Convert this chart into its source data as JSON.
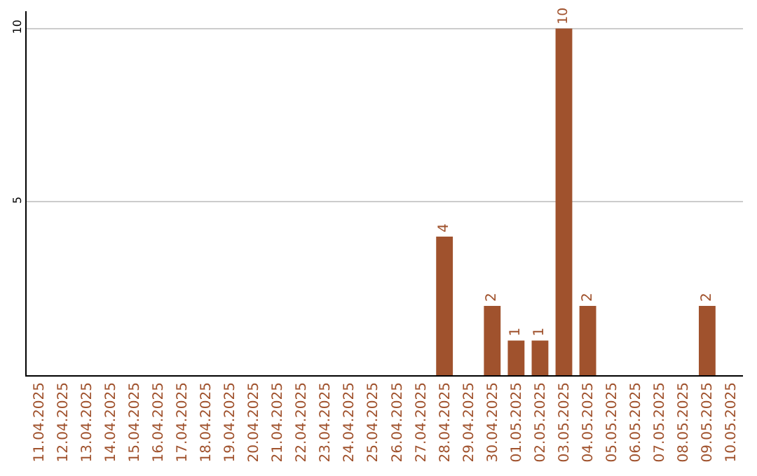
{
  "chart_data": {
    "type": "bar",
    "categories": [
      "11.04.2025",
      "12.04.2025",
      "13.04.2025",
      "14.04.2025",
      "15.04.2025",
      "16.04.2025",
      "17.04.2025",
      "18.04.2025",
      "19.04.2025",
      "20.04.2025",
      "21.04.2025",
      "22.04.2025",
      "23.04.2025",
      "24.04.2025",
      "25.04.2025",
      "26.04.2025",
      "27.04.2025",
      "28.04.2025",
      "29.04.2025",
      "30.04.2025",
      "01.05.2025",
      "02.05.2025",
      "03.05.2025",
      "04.05.2025",
      "05.05.2025",
      "06.05.2025",
      "07.05.2025",
      "08.05.2025",
      "09.05.2025",
      "10.05.2025"
    ],
    "values": [
      0,
      0,
      0,
      0,
      0,
      0,
      0,
      0,
      0,
      0,
      0,
      0,
      0,
      0,
      0,
      0,
      0,
      4,
      0,
      2,
      1,
      1,
      10,
      2,
      0,
      0,
      0,
      0,
      2,
      0
    ],
    "value_labels": [
      null,
      null,
      null,
      null,
      null,
      null,
      null,
      null,
      null,
      null,
      null,
      null,
      null,
      null,
      null,
      null,
      null,
      "4",
      null,
      "2",
      "1",
      "1",
      "10",
      "2",
      null,
      null,
      null,
      null,
      "2",
      null
    ],
    "color": "#a0522d",
    "ylim": [
      0,
      10.5
    ],
    "yticks": [
      5,
      10
    ],
    "grid": "y",
    "legend": false
  }
}
